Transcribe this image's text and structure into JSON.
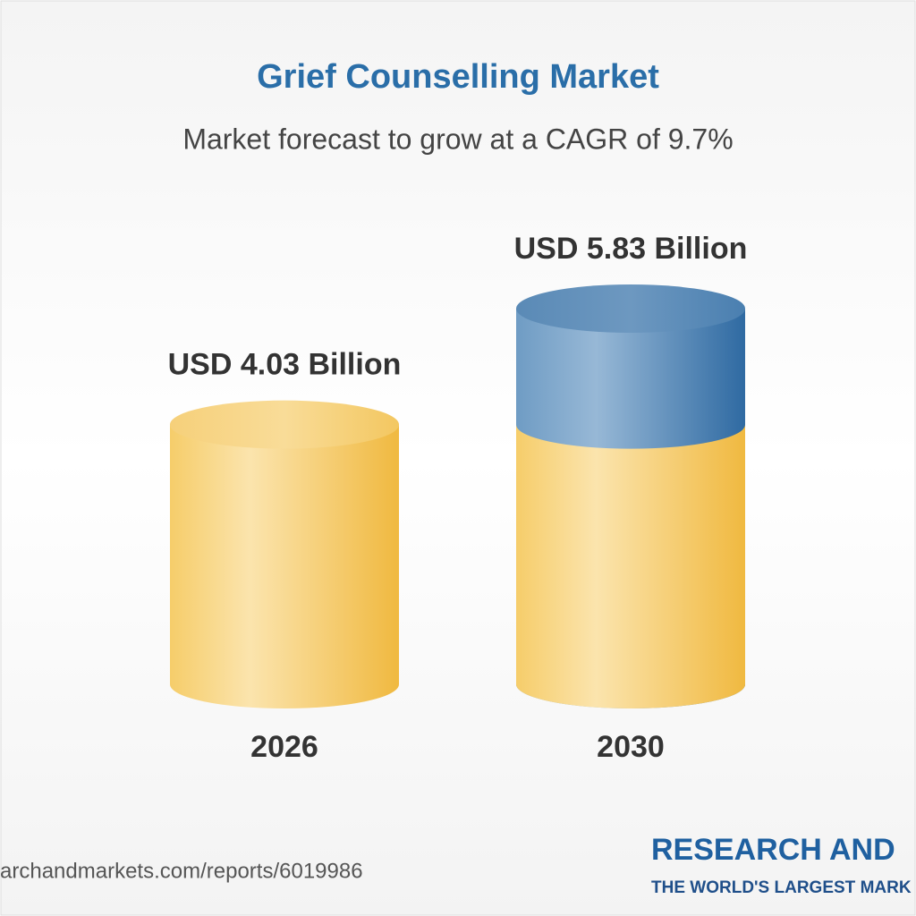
{
  "chart_data": {
    "type": "cylinder",
    "title": "Grief Counselling Market",
    "subtitle": "Market forecast to grow at a CAGR of 9.7%",
    "categories": [
      "2026",
      "2030"
    ],
    "values": [
      4.03,
      5.83
    ],
    "value_labels": [
      "USD 4.03 Billion",
      "USD 5.83 Billion"
    ],
    "colors": {
      "base": "#f3c257",
      "growth": "#4f86b8"
    }
  },
  "footer": {
    "source": "archandmarkets.com/reports/6019986",
    "logo": "RESEARCH AND",
    "tagline": "THE WORLD'S LARGEST MARK"
  }
}
